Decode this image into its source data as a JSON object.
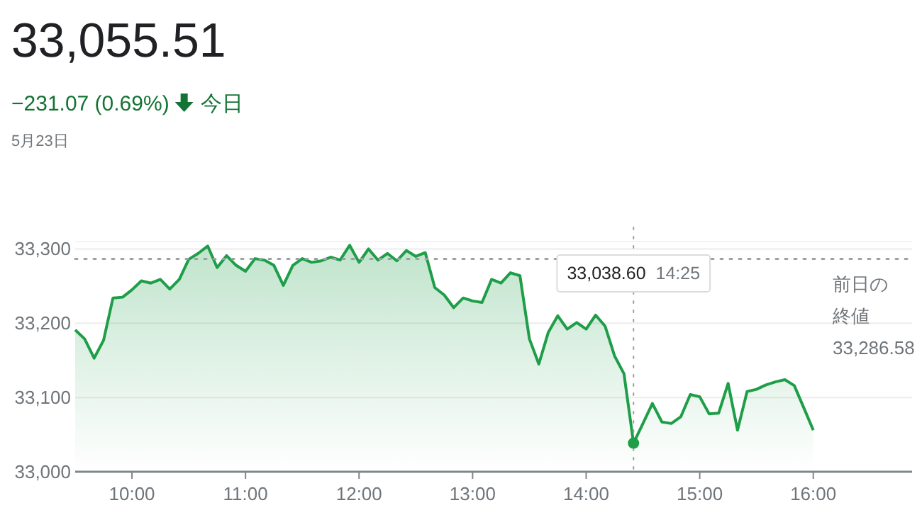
{
  "chart_data": {
    "type": "area",
    "title": "33,055.51",
    "subtitle": "−231.07 (0.69%)",
    "annotations": [
      "今日",
      "5月23日",
      "33,038.60  14:25",
      "33,286.58"
    ],
    "x": [
      9.5,
      9.583,
      9.667,
      9.75,
      9.833,
      9.917,
      10,
      10.083,
      10.167,
      10.25,
      10.333,
      10.417,
      10.5,
      10.583,
      10.667,
      10.75,
      10.833,
      10.917,
      11,
      11.083,
      11.167,
      11.25,
      11.333,
      11.417,
      11.5,
      11.583,
      11.667,
      11.75,
      11.833,
      11.917,
      12,
      12.083,
      12.167,
      12.25,
      12.333,
      12.417,
      12.5,
      12.583,
      12.667,
      12.75,
      12.833,
      12.917,
      13,
      13.083,
      13.167,
      13.25,
      13.333,
      13.417,
      13.5,
      13.583,
      13.667,
      13.75,
      13.833,
      13.917,
      14,
      14.083,
      14.167,
      14.25,
      14.333,
      14.417,
      14.5,
      14.583,
      14.667,
      14.75,
      14.833,
      14.917,
      15,
      15.083,
      15.167,
      15.25,
      15.333,
      15.417,
      15.5,
      15.583,
      15.667,
      15.75,
      15.833,
      15.917,
      16
    ],
    "series": [
      {
        "color": "#1e9e48",
        "values": [
          33191,
          33179,
          33153,
          33177,
          33234,
          33235,
          33245,
          33257,
          33254,
          33259,
          33246,
          33259,
          33286,
          33294,
          33304,
          33275,
          33291,
          33278,
          33270,
          33287,
          33285,
          33278,
          33251,
          33278,
          33287,
          33282,
          33284,
          33289,
          33285,
          33305,
          33282,
          33300,
          33285,
          33294,
          33284,
          33298,
          33290,
          33295,
          33248,
          33238,
          33221,
          33234,
          33230,
          33228,
          33259,
          33254,
          33268,
          33264,
          33179,
          33145,
          33188,
          33210,
          33192,
          33201,
          33192,
          33211,
          33196,
          33156,
          33132,
          33038.6,
          33065,
          33092,
          33067,
          33065,
          33074,
          33104,
          33101,
          33078,
          33079,
          33119,
          33056,
          33108,
          33111,
          33117,
          33121,
          33124,
          33116,
          33086,
          33056
        ]
      }
    ],
    "xlim": [
      9.5,
      16.87
    ],
    "ylim": [
      33000,
      33310
    ],
    "xticks": [
      {
        "value": 10,
        "label": "10:00"
      },
      {
        "value": 11,
        "label": "11:00"
      },
      {
        "value": 12,
        "label": "12:00"
      },
      {
        "value": 13,
        "label": "13:00"
      },
      {
        "value": 14,
        "label": "14:00"
      },
      {
        "value": 15,
        "label": "15:00"
      },
      {
        "value": 16,
        "label": "16:00"
      }
    ],
    "yticks": [
      {
        "value": 33000,
        "label": "33,000"
      },
      {
        "value": 33100,
        "label": "33,100"
      },
      {
        "value": 33200,
        "label": "33,200"
      },
      {
        "value": 33300,
        "label": "33,300"
      }
    ],
    "ref_lines": [
      {
        "axis": "y",
        "value": 33286.58,
        "label": "前日の終値",
        "color": "#9aa0a6",
        "line_style": "dotted"
      },
      {
        "axis": "x",
        "value": 14.417,
        "color": "#9aa0a6",
        "line_style": "dotted"
      }
    ],
    "grid": "y",
    "marker": "none",
    "line_style": "solid"
  }
}
